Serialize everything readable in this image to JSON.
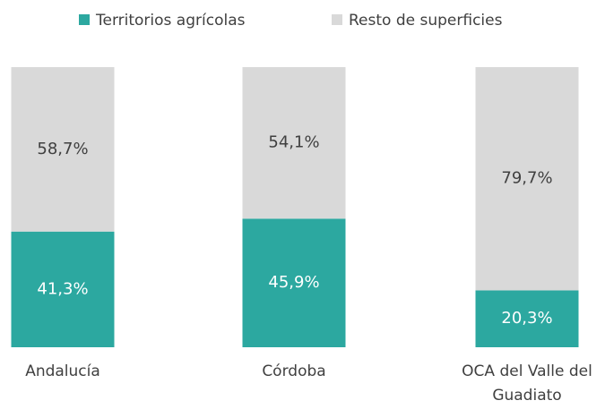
{
  "chart_data": {
    "type": "stacked_bar",
    "categories": [
      "Andalucía",
      "Córdoba",
      "OCA del Valle del Guadiato"
    ],
    "series": [
      {
        "name": "Territorios agrícolas",
        "color": "#2ca8a0",
        "values": [
          41.3,
          45.9,
          20.3
        ],
        "value_labels": [
          "41,3%",
          "45,9%",
          "20,3%"
        ],
        "label_color": "#ffffff"
      },
      {
        "name": "Resto de superficies",
        "color": "#d9d9d9",
        "values": [
          58.7,
          54.1,
          79.7
        ],
        "value_labels": [
          "58,7%",
          "54,1%",
          "79,7%"
        ],
        "label_color": "#404040"
      }
    ],
    "legend": "top"
  }
}
